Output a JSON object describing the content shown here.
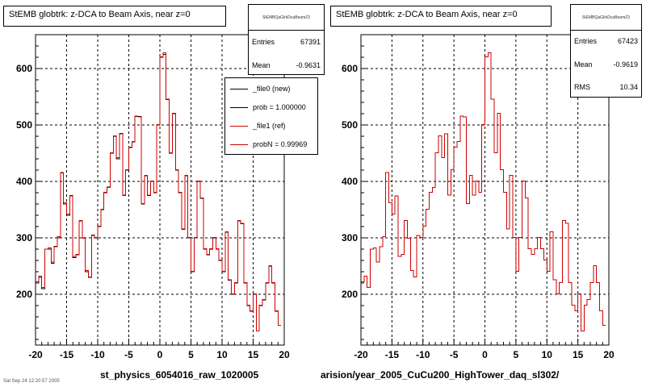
{
  "colors": {
    "new": "#000000",
    "ref": "#cc0000",
    "grid": "#000000",
    "frame": "#000000"
  },
  "left": {
    "title": "StEMB globtrk: z-DCA to Beam Axis, near z=0",
    "stats": {
      "name": "StEMBQaGlrkDcaBeamZ3",
      "entries_label": "Entries",
      "entries": "67391",
      "mean_label": "Mean",
      "mean": "-0.9631"
    },
    "legend": [
      {
        "label": "_file0 (new)",
        "color": "#000000"
      },
      {
        "label": "prob = 1.000000",
        "color": "#000000"
      },
      {
        "label": "_file1 (ref)",
        "color": "#cc0000"
      },
      {
        "label": "probN = 0.99969",
        "color": "#cc0000"
      }
    ],
    "xfooter": "st_physics_6054016_raw_1020005"
  },
  "right": {
    "title": "StEMB globtrk: z-DCA to Beam Axis, near z=0",
    "stats": {
      "name": "StEMBQaGlrkDcaBeamZ3",
      "entries_label": "Entries",
      "entries": "67423",
      "mean_label": "Mean",
      "mean": "-0.9619",
      "rms_label": "RMS",
      "rms": "10.34"
    },
    "xfooter": "arision/year_2005_CuCu200_HighTower_daq_sl302/"
  },
  "corner_note": "Sat Sep 24 12:20:57 2005",
  "chart_data": [
    {
      "type": "line",
      "title": "StEMB globtrk: z-DCA to Beam Axis, near z=0",
      "xlim": [
        -20,
        20
      ],
      "ylim": [
        110,
        660
      ],
      "xticks": [
        -20,
        -15,
        -10,
        -5,
        0,
        5,
        10,
        15,
        20
      ],
      "yticks": [
        200,
        300,
        400,
        500,
        600
      ],
      "grid": true,
      "legend_position": "top-right",
      "bin_edges_start": -20,
      "bin_width": 0.5,
      "series": [
        {
          "name": "_file0 (new)",
          "color": "#000000",
          "values": [
            220,
            230,
            210,
            280,
            280,
            255,
            285,
            300,
            415,
            360,
            340,
            375,
            265,
            270,
            330,
            300,
            240,
            230,
            305,
            300,
            320,
            350,
            380,
            390,
            450,
            480,
            440,
            485,
            375,
            420,
            460,
            470,
            515,
            515,
            360,
            410,
            375,
            400,
            380,
            500,
            620,
            625,
            545,
            450,
            520,
            420,
            380,
            315,
            410,
            300,
            240,
            300,
            400,
            370,
            280,
            270,
            280,
            300,
            280,
            260,
            240,
            310,
            225,
            200,
            220,
            330,
            325,
            220,
            180,
            170,
            200,
            135,
            180,
            190,
            220,
            250,
            220,
            170,
            145
          ]
        },
        {
          "name": "_file1 (ref)",
          "color": "#cc0000",
          "values": [
            222,
            232,
            212,
            280,
            282,
            257,
            284,
            302,
            416,
            362,
            342,
            374,
            267,
            271,
            331,
            299,
            242,
            231,
            304,
            301,
            321,
            351,
            381,
            389,
            451,
            481,
            442,
            484,
            376,
            421,
            461,
            471,
            516,
            514,
            361,
            411,
            376,
            401,
            381,
            501,
            621,
            628,
            546,
            451,
            521,
            421,
            381,
            316,
            411,
            301,
            241,
            301,
            401,
            371,
            281,
            271,
            281,
            301,
            281,
            261,
            241,
            311,
            226,
            201,
            221,
            331,
            326,
            221,
            181,
            171,
            201,
            135,
            181,
            191,
            221,
            251,
            221,
            171,
            145
          ]
        }
      ]
    },
    {
      "type": "line",
      "title": "StEMB globtrk: z-DCA to Beam Axis, near z=0",
      "xlim": [
        -20,
        20
      ],
      "ylim": [
        110,
        660
      ],
      "xticks": [
        -20,
        -15,
        -10,
        -5,
        0,
        5,
        10,
        15,
        20
      ],
      "yticks": [
        200,
        300,
        400,
        500,
        600
      ],
      "grid": true,
      "bin_edges_start": -20,
      "bin_width": 0.5,
      "series": [
        {
          "name": "ref",
          "color": "#cc0000",
          "values": [
            222,
            232,
            212,
            280,
            282,
            257,
            284,
            302,
            416,
            362,
            342,
            374,
            267,
            271,
            331,
            299,
            242,
            231,
            304,
            301,
            321,
            351,
            381,
            389,
            451,
            481,
            442,
            484,
            376,
            421,
            461,
            471,
            516,
            514,
            361,
            411,
            376,
            401,
            381,
            501,
            621,
            628,
            546,
            451,
            521,
            421,
            381,
            316,
            411,
            301,
            241,
            301,
            401,
            371,
            281,
            271,
            281,
            301,
            281,
            261,
            241,
            311,
            226,
            201,
            221,
            331,
            326,
            221,
            181,
            171,
            201,
            135,
            181,
            191,
            221,
            251,
            221,
            171,
            145
          ]
        }
      ]
    }
  ]
}
